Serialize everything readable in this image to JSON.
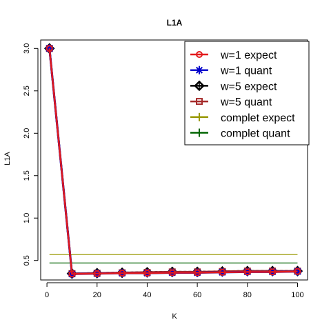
{
  "chart_data": {
    "type": "line",
    "title": "L1A",
    "xlabel": "K",
    "ylabel": "L1A",
    "xlim": [
      -2.5,
      104
    ],
    "ylim": [
      0.27,
      3.1
    ],
    "xticks": [
      0,
      20,
      40,
      60,
      80,
      100
    ],
    "xtick_labels": [
      "0",
      "20",
      "40",
      "60",
      "80",
      "100"
    ],
    "yticks": [
      0.5,
      1.0,
      1.5,
      2.0,
      2.5,
      3.0
    ],
    "ytick_labels": [
      "0.5",
      "1.0",
      "1.5",
      "2.0",
      "2.5",
      "3.0"
    ],
    "legend_position": "top-right",
    "x": [
      1,
      10,
      20,
      30,
      40,
      50,
      60,
      70,
      80,
      90,
      100
    ],
    "series": [
      {
        "name": "w=1 expect",
        "color": "#e31a1c",
        "marker": "circle",
        "values": [
          3.0,
          0.34,
          0.345,
          0.35,
          0.35,
          0.355,
          0.355,
          0.36,
          0.365,
          0.365,
          0.37
        ]
      },
      {
        "name": "w=1 quant",
        "color": "#0000cc",
        "marker": "asterisk",
        "values": [
          3.0,
          0.34,
          0.345,
          0.35,
          0.35,
          0.355,
          0.355,
          0.36,
          0.365,
          0.365,
          0.37
        ]
      },
      {
        "name": "w=5 expect",
        "color": "#000000",
        "marker": "diamond",
        "values": [
          3.0,
          0.345,
          0.35,
          0.355,
          0.36,
          0.365,
          0.365,
          0.37,
          0.375,
          0.375,
          0.375
        ]
      },
      {
        "name": "w=5 quant",
        "color": "#a52a2a",
        "marker": "square",
        "values": [
          3.0,
          0.345,
          0.35,
          0.355,
          0.36,
          0.365,
          0.365,
          0.37,
          0.375,
          0.375,
          0.375
        ]
      },
      {
        "name": "complet expect",
        "color": "#999900",
        "marker": "plus",
        "constant": 0.57
      },
      {
        "name": "complet quant",
        "color": "#006400",
        "marker": "plus",
        "constant": 0.47
      }
    ]
  }
}
